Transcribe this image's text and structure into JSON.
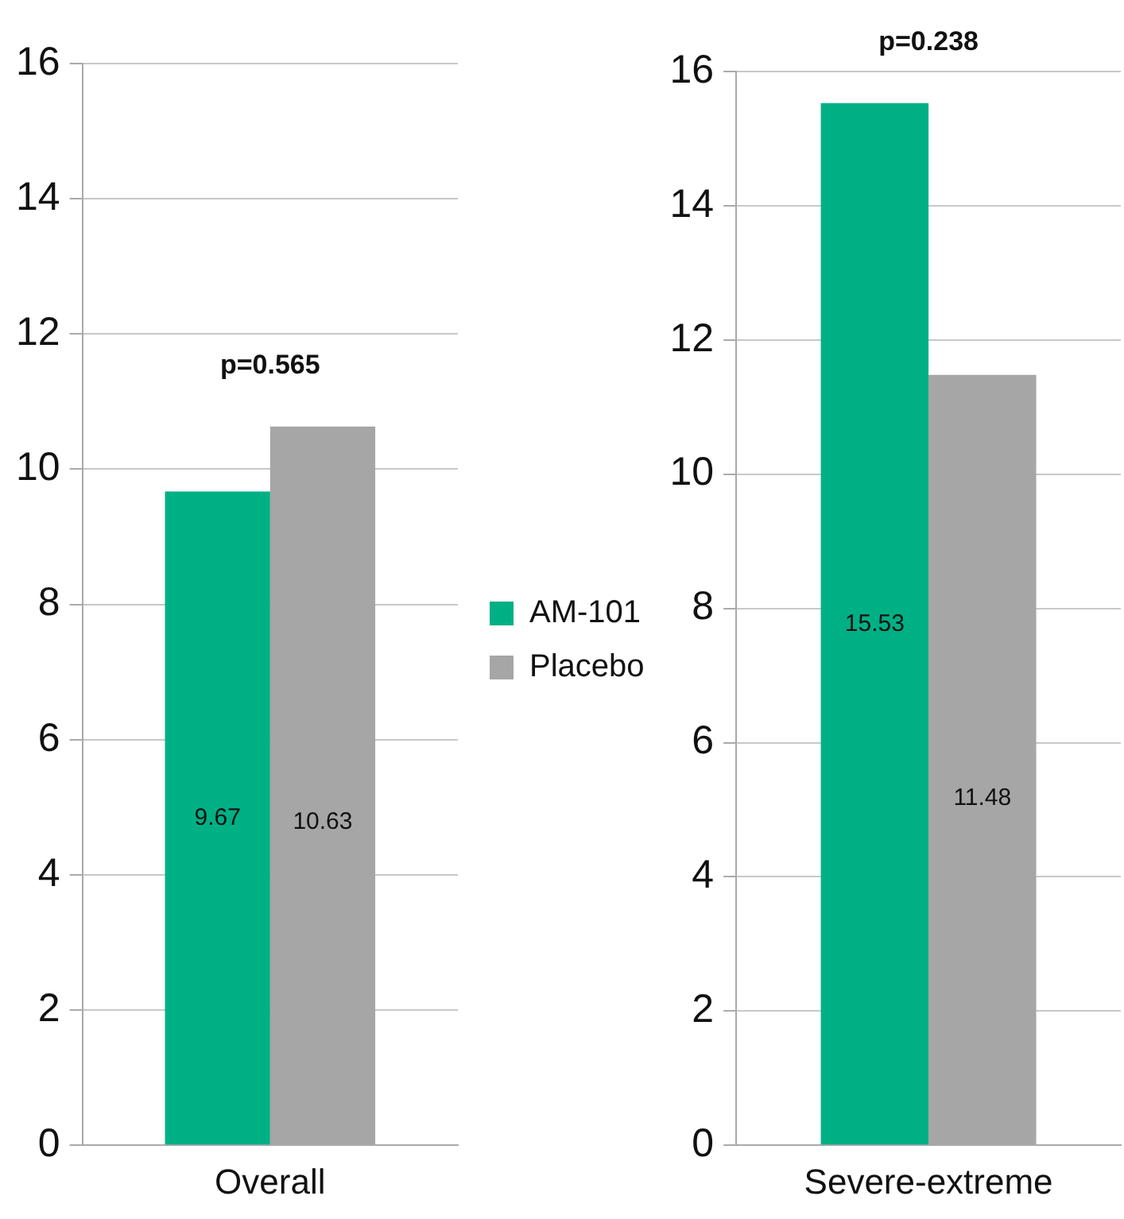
{
  "chart_data": [
    {
      "type": "bar",
      "categories": [
        "Overall"
      ],
      "series": [
        {
          "color": "#00b085",
          "values": [
            9.67
          ]
        },
        {
          "color": "#a6a6a6",
          "values": [
            10.63
          ]
        }
      ],
      "ylim": [
        0,
        16
      ],
      "yticks": [
        0,
        2,
        4,
        6,
        8,
        10,
        12,
        14,
        16
      ],
      "grid": "y",
      "data_labels": true,
      "legend": false,
      "annotations": [
        "p=0.565"
      ]
    },
    {
      "type": "bar",
      "categories": [
        "Severe-extreme"
      ],
      "series": [
        {
          "name": "AM-101",
          "color": "#00b085",
          "values": [
            15.53
          ]
        },
        {
          "name": "Placebo",
          "color": "#a6a6a6",
          "values": [
            11.48
          ]
        }
      ],
      "ylim": [
        0,
        16
      ],
      "yticks": [
        0,
        2,
        4,
        6,
        8,
        10,
        12,
        14,
        16
      ],
      "grid": "y",
      "data_labels": true,
      "legend": "left",
      "annotations": [
        "p=0.238"
      ]
    }
  ]
}
